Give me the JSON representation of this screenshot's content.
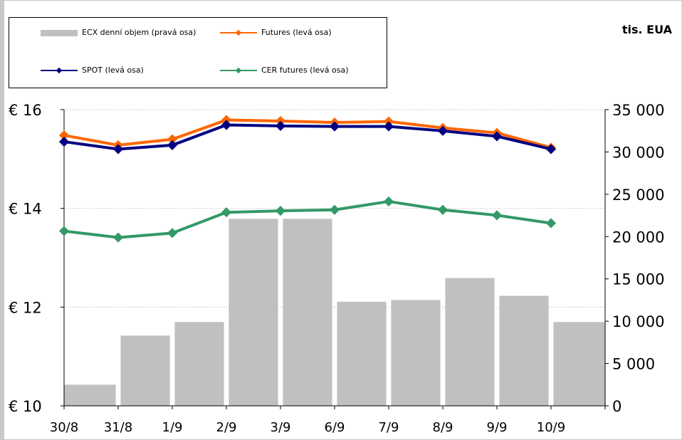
{
  "chart_data": {
    "type": "bar+line",
    "unit_label": "tis. EUA",
    "categories": [
      "30/8",
      "31/8",
      "1/9",
      "2/9",
      "3/9",
      "6/9",
      "7/9",
      "8/9",
      "9/9",
      "10/9"
    ],
    "left_axis": {
      "ticks": [
        "€ 10",
        "€ 12",
        "€ 14",
        "€ 16"
      ],
      "ylim": [
        10,
        16
      ]
    },
    "right_axis": {
      "ticks": [
        "0",
        "5 000",
        "10 000",
        "15 000",
        "20 000",
        "25 000",
        "30 000",
        "35 000"
      ],
      "ylim": [
        0,
        35000
      ]
    },
    "grid": true,
    "legend_position": "top-left",
    "bars": {
      "name": "ECX denní objem (pravá osa)",
      "color": "#c0c0c0",
      "values": [
        2500,
        8300,
        9900,
        22100,
        22100,
        12300,
        12500,
        15100,
        13000,
        9900
      ]
    },
    "series": [
      {
        "name": "Futures (levá osa)",
        "color": "#ff6600",
        "values": [
          15.48,
          15.28,
          15.4,
          15.79,
          15.77,
          15.74,
          15.76,
          15.63,
          15.53,
          15.23
        ]
      },
      {
        "name": "SPOT (levá osa)",
        "color": "#000080",
        "values": [
          15.35,
          15.2,
          15.28,
          15.69,
          15.67,
          15.66,
          15.66,
          15.57,
          15.46,
          15.2
        ]
      },
      {
        "name": "CER futures (levá osa)",
        "color": "#339966",
        "values": [
          13.54,
          13.41,
          13.5,
          13.92,
          13.95,
          13.97,
          14.14,
          13.97,
          13.86,
          13.7
        ]
      }
    ]
  }
}
